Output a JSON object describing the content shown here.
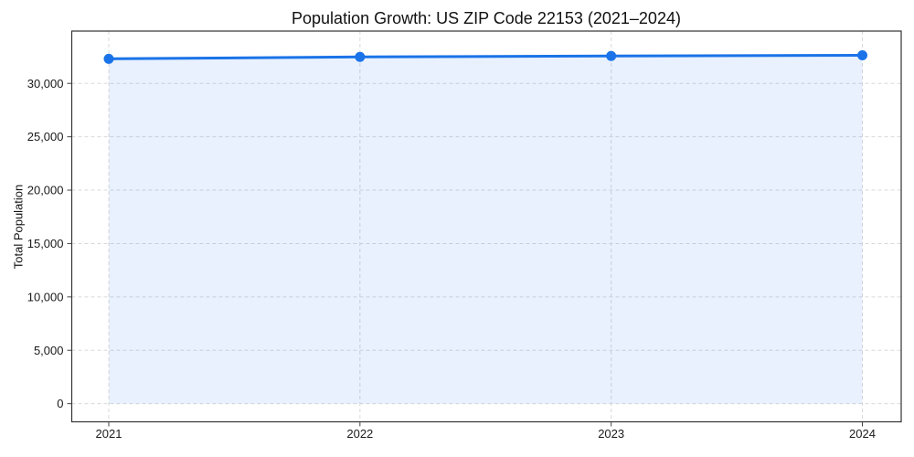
{
  "chart_data": {
    "type": "line",
    "title": "Population Growth: US ZIP Code 22153 (2021–2024)",
    "xlabel": "",
    "ylabel": "Total Population",
    "categories": [
      "2021",
      "2022",
      "2023",
      "2024"
    ],
    "series": [
      {
        "name": "Total Population",
        "values": [
          32300,
          32480,
          32570,
          32630
        ]
      }
    ],
    "yticks": [
      0,
      5000,
      10000,
      15000,
      20000,
      25000,
      30000
    ],
    "ytick_labels": [
      "0",
      "5,000",
      "10,000",
      "15,000",
      "20,000",
      "25,000",
      "30,000"
    ],
    "ylim": [
      -1700,
      34900
    ],
    "grid": true,
    "grid_style": "dashed",
    "legend_position": "none",
    "marker": "circle",
    "area_fill": true,
    "colors": {
      "line": "#1a73e8",
      "marker": "#1a73e8",
      "fill": "rgba(26,115,232,0.10)",
      "grid": "#d9d9d9",
      "spine": "#333333",
      "tick": "#444444",
      "text": "#1a1a1a",
      "background": "#ffffff"
    }
  }
}
